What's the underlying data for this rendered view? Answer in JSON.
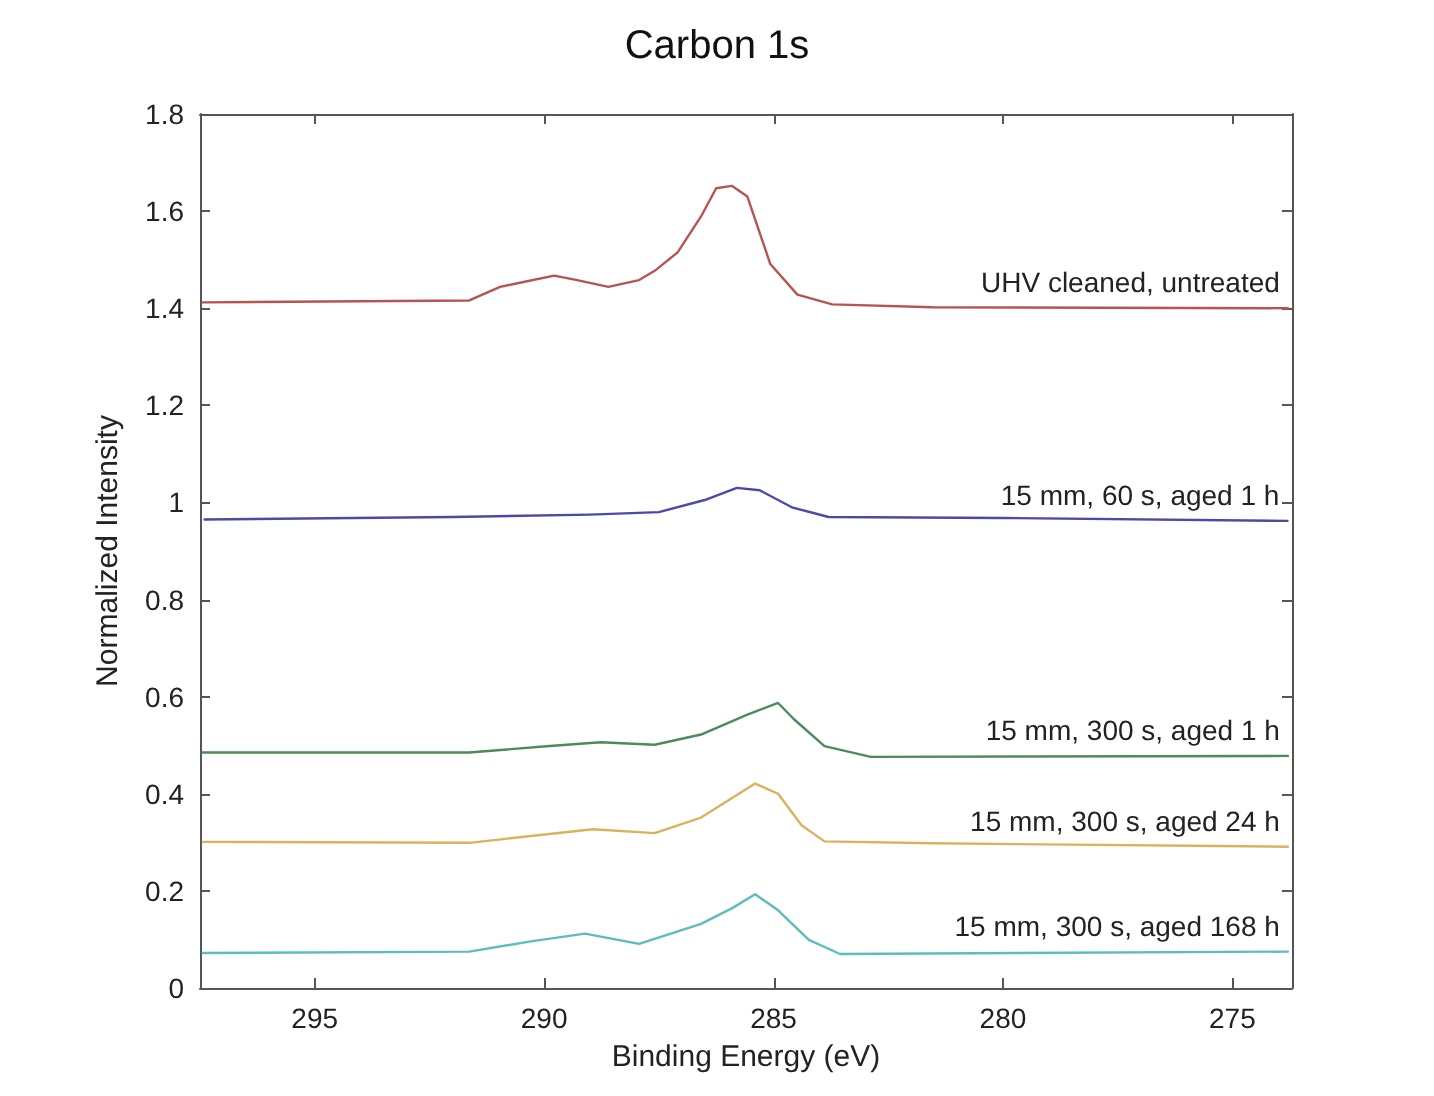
{
  "chart_data": {
    "type": "line",
    "title": "Carbon 1s",
    "xlabel": "Binding Energy (eV)",
    "ylabel": "Normalized Intensity",
    "xlim": [
      297.5,
      273.7
    ],
    "xticks": [
      295,
      290,
      285,
      280,
      275
    ],
    "ylim": [
      0,
      1.8
    ],
    "yticks": [
      0,
      0.2,
      0.4,
      0.6,
      0.8,
      1,
      1.2,
      1.4,
      1.6,
      1.8
    ],
    "grid": false,
    "legend": false,
    "marker": "none",
    "line_style": "solid",
    "series": [
      {
        "name": "UHV cleaned, untreated",
        "color": "#b85450",
        "x": [
          297.44,
          291.63,
          290.96,
          290.45,
          289.78,
          289.28,
          288.6,
          287.93,
          287.59,
          287.09,
          286.58,
          286.25,
          285.91,
          285.57,
          285.07,
          284.48,
          283.72,
          281.53,
          273.79
        ],
        "values": [
          1.412,
          1.416,
          1.444,
          1.454,
          1.467,
          1.458,
          1.444,
          1.458,
          1.477,
          1.515,
          1.589,
          1.647,
          1.652,
          1.63,
          1.491,
          1.428,
          1.408,
          1.402,
          1.4
        ]
      },
      {
        "name": "15 mm, 60 s, aged 1 h",
        "color": "#4a4aa8",
        "x": [
          297.4,
          292,
          289,
          287.5,
          286.5,
          285.8,
          285.3,
          284.6,
          283.8,
          280,
          273.8
        ],
        "values": [
          0.965,
          0.97,
          0.975,
          0.98,
          1.005,
          1.03,
          1.025,
          0.99,
          0.97,
          0.968,
          0.962
        ]
      },
      {
        "name": "15 mm, 300 s, aged 1 h",
        "color": "#4f8a5a",
        "x": [
          297.44,
          291.63,
          289.95,
          288.77,
          287.59,
          286.58,
          285.57,
          284.9,
          284.56,
          283.89,
          282.88,
          273.79
        ],
        "values": [
          0.485,
          0.485,
          0.498,
          0.506,
          0.501,
          0.522,
          0.563,
          0.587,
          0.554,
          0.498,
          0.476,
          0.478
        ]
      },
      {
        "name": "15 mm, 300 s, aged 24 h",
        "color": "#d9b35c",
        "x": [
          297.44,
          291.63,
          288.94,
          287.59,
          286.58,
          285.4,
          284.9,
          284.39,
          283.89,
          281.53,
          273.79
        ],
        "values": [
          0.301,
          0.299,
          0.327,
          0.319,
          0.351,
          0.421,
          0.4,
          0.335,
          0.302,
          0.298,
          0.291
        ]
      },
      {
        "name": "15 mm, 300 s, aged 168 h",
        "color": "#5cbdbd",
        "x": [
          297.44,
          291.63,
          290.29,
          289.11,
          287.93,
          286.58,
          285.91,
          285.4,
          284.9,
          284.23,
          283.55,
          273.79
        ],
        "values": [
          0.072,
          0.075,
          0.096,
          0.112,
          0.091,
          0.132,
          0.164,
          0.193,
          0.16,
          0.099,
          0.07,
          0.075
        ]
      }
    ]
  }
}
